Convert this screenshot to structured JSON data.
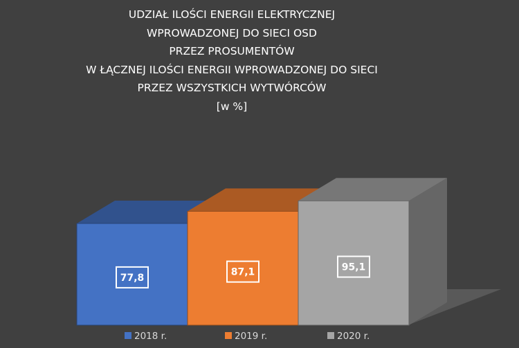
{
  "chart_data": {
    "type": "bar",
    "title_lines": [
      "UDZIAŁ ILOŚCI ENERGII ELEKTRYCZNEJ",
      "WPROWADZONEJ DO SIECI OSD",
      "PRZEZ PROSUMENTÓW",
      "W ŁĄCZNEJ ILOŚCI ENERGII WPROWADZONEJ DO SIECI",
      "PRZEZ WSZYSTKICH WYTWÓRCÓW",
      "[w %]"
    ],
    "series": [
      {
        "name": "2018 r.",
        "value": 77.8,
        "label": "77,8",
        "color": "#4472C4"
      },
      {
        "name": "2019 r.",
        "value": 87.1,
        "label": "87,1",
        "color": "#ED7D31"
      },
      {
        "name": "2020 r.",
        "value": 95.1,
        "label": "95,1",
        "color": "#A5A5A5"
      }
    ],
    "legend_position": "bottom",
    "style": "3d-column"
  }
}
